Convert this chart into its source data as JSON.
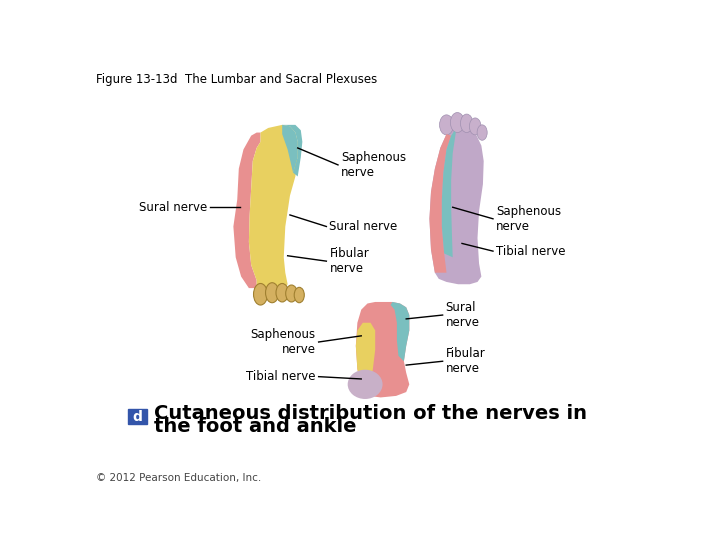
{
  "title": "Figure 13-13d  The Lumbar and Sacral Plexuses",
  "caption_text": "Cutaneous distribution of the nerves in\nthe foot and ankle",
  "copyright": "© 2012 Pearson Education, Inc.",
  "bg_color": "#ffffff",
  "colors": {
    "yellow": "#E8D060",
    "teal": "#7ABFBF",
    "pink": "#E89090",
    "lavender": "#C0A8C8",
    "toe_skin": "#D4B84A",
    "heel_lavender": "#C0A0C0",
    "ankle_lavender": "#C8B0C8"
  }
}
